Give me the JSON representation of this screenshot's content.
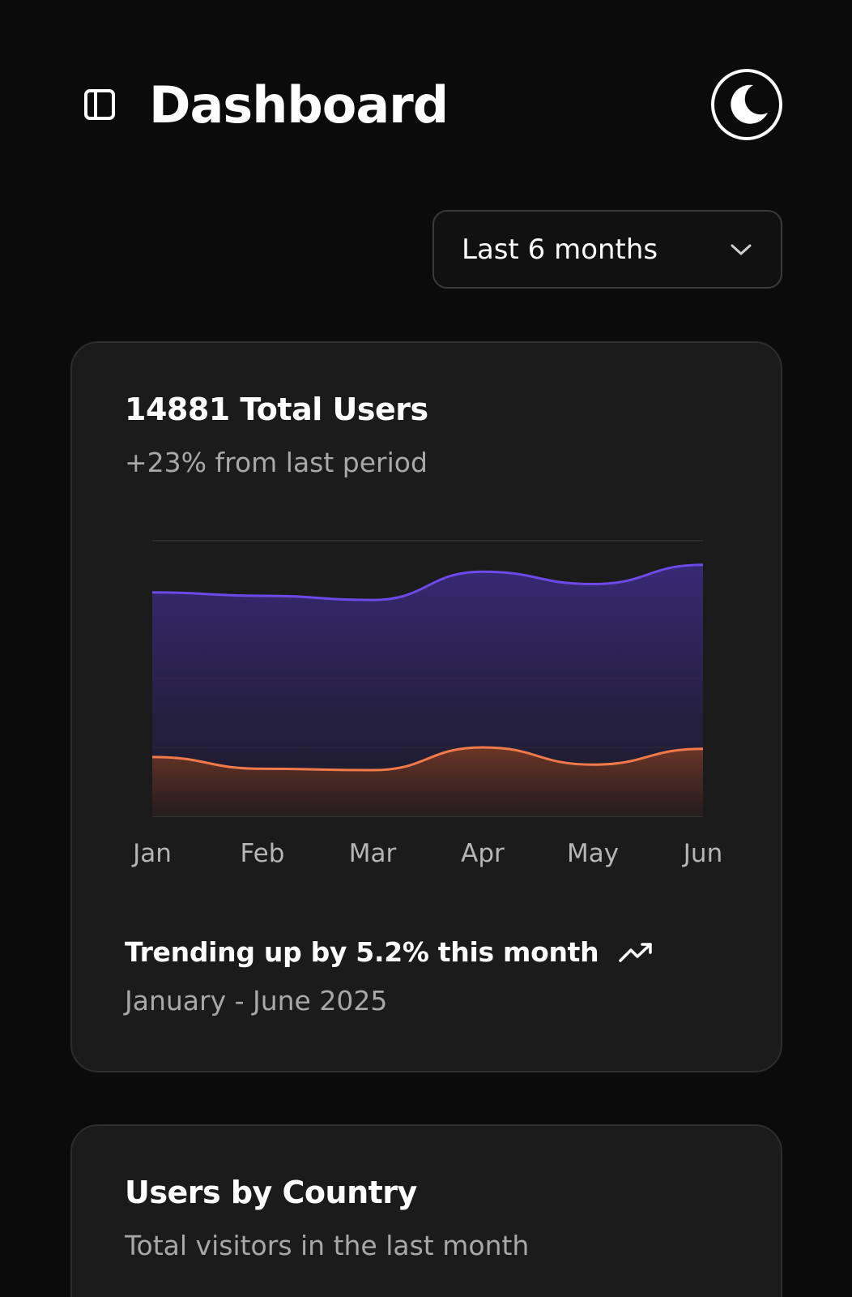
{
  "header": {
    "title": "Dashboard",
    "sidebar_toggle_icon": "sidebar-panel-icon",
    "theme_toggle_icon": "moon-icon"
  },
  "range_select": {
    "value": "Last 6 months",
    "icon": "chevron-down-icon"
  },
  "users_card": {
    "title": "14881 Total Users",
    "subtitle": "+23% from last period",
    "trend_text": "Trending up by 5.2% this month",
    "trend_icon": "trending-up-icon",
    "period": "January - June 2025"
  },
  "country_card": {
    "title": "Users by Country",
    "subtitle": "Total visitors in the last month"
  },
  "colors": {
    "background": "#0b0b0b",
    "card": "#1b1b1b",
    "series_purple": "#6d4ae8",
    "series_orange": "#f07a4a",
    "muted_text": "#a8a8a8"
  },
  "chart_data": {
    "type": "area",
    "categories": [
      "Jan",
      "Feb",
      "Mar",
      "Apr",
      "May",
      "Jun"
    ],
    "series": [
      {
        "color": "#6d4ae8",
        "values": [
          325,
          320,
          314,
          355,
          337,
          365
        ]
      },
      {
        "color": "#f07a4a",
        "values": [
          86,
          69,
          67,
          100,
          75,
          98
        ]
      }
    ],
    "ylim": [
      0,
      400
    ],
    "grid": true
  }
}
